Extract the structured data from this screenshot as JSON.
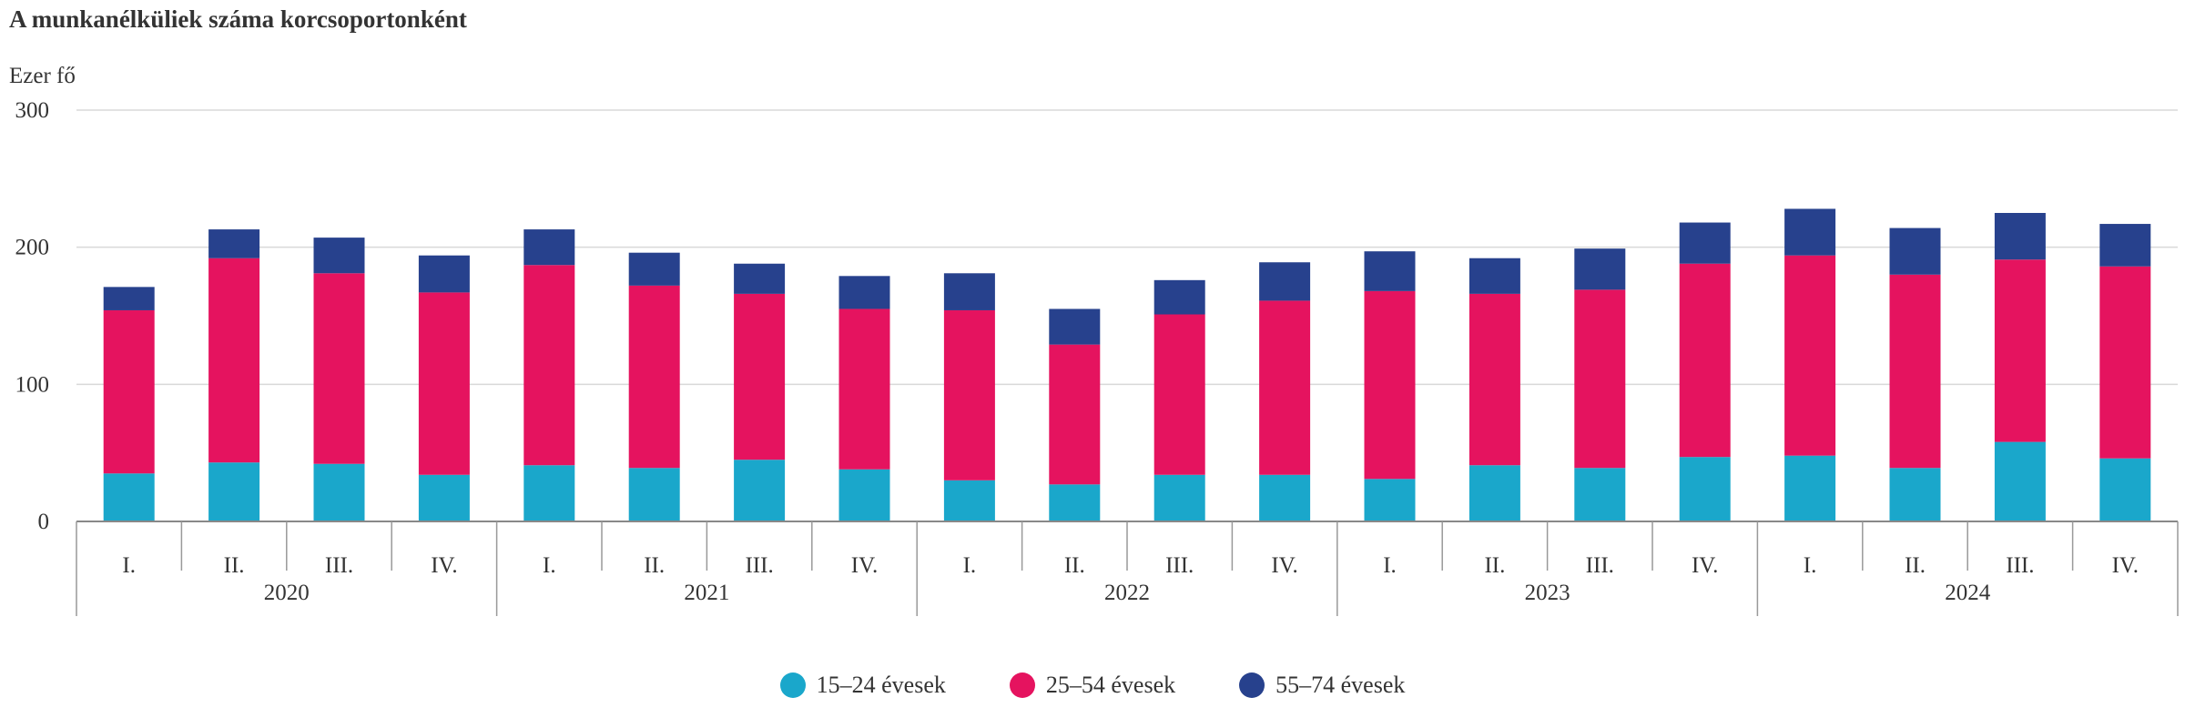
{
  "chart_data": {
    "type": "bar",
    "stacked": true,
    "title": "A munkanélküliek száma korcsoportonként",
    "ylabel": "Ezer fő",
    "ylim": [
      0,
      300
    ],
    "yticks": [
      "0",
      "100",
      "200",
      "300"
    ],
    "grid": true,
    "legend_position": "bottom",
    "categories": [
      "I.",
      "II.",
      "III.",
      "IV.",
      "I.",
      "II.",
      "III.",
      "IV.",
      "I.",
      "II.",
      "III.",
      "IV.",
      "I.",
      "II.",
      "III.",
      "IV.",
      "I.",
      "II.",
      "III.",
      "IV."
    ],
    "groups": [
      "2020",
      "2021",
      "2022",
      "2023",
      "2024"
    ],
    "series": [
      {
        "name": "15–24 évesek",
        "color": "#1aa7cb",
        "values": [
          35,
          43,
          42,
          34,
          41,
          39,
          45,
          38,
          30,
          27,
          34,
          34,
          31,
          41,
          39,
          47,
          48,
          39,
          58,
          46
        ]
      },
      {
        "name": "25–54 évesek",
        "color": "#e5135f",
        "values": [
          119,
          149,
          139,
          133,
          146,
          133,
          121,
          117,
          124,
          102,
          117,
          127,
          137,
          125,
          130,
          141,
          146,
          141,
          133,
          140
        ]
      },
      {
        "name": "55–74 évesek",
        "color": "#27418d",
        "values": [
          17,
          21,
          26,
          27,
          26,
          24,
          22,
          24,
          27,
          26,
          25,
          28,
          29,
          26,
          30,
          30,
          34,
          34,
          34,
          31
        ]
      }
    ]
  }
}
